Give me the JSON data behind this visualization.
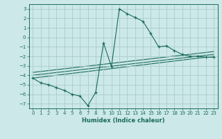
{
  "xlabel": "Humidex (Indice chaleur)",
  "background_color": "#cce8e8",
  "grid_color": "#aacccc",
  "line_color": "#1a6b5a",
  "xlim": [
    -0.5,
    23.5
  ],
  "ylim": [
    -7.5,
    3.5
  ],
  "xticks": [
    0,
    1,
    2,
    3,
    4,
    5,
    6,
    7,
    8,
    9,
    10,
    11,
    12,
    13,
    14,
    15,
    16,
    17,
    18,
    19,
    20,
    21,
    22,
    23
  ],
  "yticks": [
    -7,
    -6,
    -5,
    -4,
    -3,
    -2,
    -1,
    0,
    1,
    2,
    3
  ],
  "series_x": [
    0,
    1,
    2,
    3,
    4,
    5,
    6,
    7,
    8,
    9,
    10,
    11,
    12,
    13,
    14,
    15,
    16,
    17,
    18,
    19,
    20,
    21,
    22,
    23
  ],
  "series_y": [
    -4.3,
    -4.8,
    -5.0,
    -5.3,
    -5.6,
    -6.0,
    -6.2,
    -7.2,
    -5.8,
    -0.6,
    -3.1,
    3.0,
    2.5,
    2.1,
    1.7,
    0.4,
    -1.0,
    -0.9,
    -1.4,
    -1.8,
    -2.0,
    -2.0,
    -2.1,
    -2.1
  ],
  "fit_lines": [
    {
      "x": [
        0,
        23
      ],
      "y": [
        -4.3,
        -2.0
      ]
    },
    {
      "x": [
        0,
        23
      ],
      "y": [
        -4.0,
        -1.8
      ]
    },
    {
      "x": [
        0,
        23
      ],
      "y": [
        -3.7,
        -1.5
      ]
    }
  ]
}
